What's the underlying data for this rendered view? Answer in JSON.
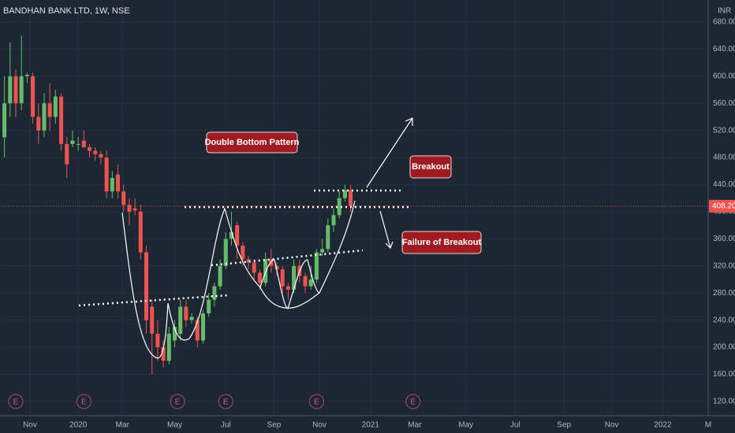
{
  "chart_data": {
    "type": "candlestick",
    "title": "BANDHAN BANK LTD, 1W, NSE",
    "currency": "INR",
    "up_color": "#66bb6a",
    "down_color": "#ef5350",
    "x": [
      0,
      1,
      2,
      3,
      4,
      5,
      6,
      7,
      8,
      9,
      10,
      11,
      12,
      13,
      14,
      15,
      16,
      17,
      18,
      19,
      20,
      21,
      22,
      23,
      24,
      25,
      26,
      27,
      28,
      29,
      30,
      31,
      32,
      33,
      34,
      35,
      36,
      37,
      38,
      39,
      40,
      41,
      42,
      43,
      44,
      45,
      46,
      47,
      48,
      49,
      50,
      51,
      52,
      53,
      54,
      55,
      56,
      57,
      58,
      59,
      60,
      61
    ],
    "open": [
      510,
      560,
      600,
      560,
      600,
      600,
      540,
      520,
      560,
      540,
      570,
      500,
      500,
      500,
      505,
      495,
      490,
      485,
      480,
      430,
      455,
      430,
      410,
      405,
      400,
      340,
      260,
      220,
      200,
      180,
      210,
      220,
      260,
      240,
      240,
      210,
      250,
      270,
      290,
      320,
      360,
      380,
      350,
      330,
      325,
      310,
      295,
      330,
      320,
      315,
      290,
      285,
      320,
      305,
      290,
      300,
      340,
      345,
      380,
      395,
      420,
      432
    ],
    "high": [
      600,
      650,
      610,
      660,
      605,
      605,
      560,
      575,
      590,
      580,
      575,
      510,
      520,
      510,
      520,
      500,
      495,
      490,
      490,
      460,
      470,
      440,
      420,
      420,
      410,
      350,
      270,
      240,
      210,
      230,
      240,
      270,
      270,
      250,
      245,
      255,
      280,
      295,
      330,
      370,
      400,
      385,
      355,
      335,
      330,
      315,
      340,
      345,
      325,
      320,
      295,
      330,
      330,
      310,
      320,
      345,
      360,
      390,
      405,
      430,
      440,
      440
    ],
    "low": [
      480,
      540,
      540,
      550,
      590,
      530,
      500,
      510,
      520,
      530,
      490,
      450,
      495,
      490,
      495,
      480,
      475,
      470,
      420,
      420,
      420,
      400,
      380,
      395,
      330,
      220,
      160,
      180,
      170,
      175,
      200,
      210,
      230,
      235,
      200,
      205,
      245,
      260,
      285,
      315,
      350,
      330,
      320,
      315,
      300,
      285,
      290,
      310,
      305,
      280,
      270,
      280,
      295,
      280,
      285,
      295,
      335,
      340,
      370,
      390,
      415,
      400
    ],
    "close": [
      560,
      600,
      560,
      600,
      602,
      540,
      520,
      560,
      540,
      570,
      500,
      470,
      505,
      500,
      495,
      490,
      485,
      480,
      430,
      450,
      430,
      410,
      400,
      402,
      340,
      240,
      220,
      200,
      180,
      220,
      230,
      260,
      240,
      245,
      210,
      250,
      270,
      290,
      320,
      360,
      370,
      350,
      330,
      325,
      310,
      295,
      330,
      320,
      315,
      290,
      285,
      320,
      305,
      290,
      300,
      340,
      345,
      380,
      395,
      420,
      432,
      408.2
    ],
    "xlim": [
      -0.5,
      124
    ],
    "xticks": [
      {
        "value": 4.5,
        "label": "Nov"
      },
      {
        "value": 13,
        "label": "2020"
      },
      {
        "value": 20.8,
        "label": "Mar"
      },
      {
        "value": 30,
        "label": "May"
      },
      {
        "value": 39,
        "label": "Jul"
      },
      {
        "value": 47.5,
        "label": "Sep"
      },
      {
        "value": 55.5,
        "label": "Nov"
      },
      {
        "value": 64.5,
        "label": "2021"
      },
      {
        "value": 72.3,
        "label": "Mar"
      },
      {
        "value": 81.3,
        "label": "May"
      },
      {
        "value": 90,
        "label": "Jul"
      },
      {
        "value": 98.6,
        "label": "Sep"
      },
      {
        "value": 107,
        "label": "Nov"
      },
      {
        "value": 116,
        "label": "2022"
      },
      {
        "value": 124,
        "label": "M"
      }
    ],
    "ylim": [
      99,
      712.5
    ],
    "yticks": [
      {
        "value": 120,
        "label": "120.00"
      },
      {
        "value": 160,
        "label": "160.00"
      },
      {
        "value": 200,
        "label": "200.00"
      },
      {
        "value": 240,
        "label": "240.00"
      },
      {
        "value": 280,
        "label": "280.00"
      },
      {
        "value": 320,
        "label": "320.00"
      },
      {
        "value": 360,
        "label": "360.00"
      },
      {
        "value": 400,
        "label": "400.00"
      },
      {
        "value": 440,
        "label": "440.00"
      },
      {
        "value": 480,
        "label": "480.00"
      },
      {
        "value": 520,
        "label": "520.00"
      },
      {
        "value": 560,
        "label": "560.00"
      },
      {
        "value": 600,
        "label": "600.00"
      },
      {
        "value": 640,
        "label": "640.00"
      },
      {
        "value": 680,
        "label": "680.00"
      }
    ],
    "grid": true,
    "last_price": {
      "value": 408.2,
      "label": "408.20"
    },
    "earnings": [
      {
        "label": "E",
        "x": 2
      },
      {
        "label": "E",
        "x": 14
      },
      {
        "label": "E",
        "x": 30.5
      },
      {
        "label": "E",
        "x": 39
      },
      {
        "label": "E",
        "x": 55
      },
      {
        "label": "E",
        "x": 72
      }
    ],
    "annotations": [
      "Double Bottom Pattern",
      "Breakout",
      "Failure of Breakout"
    ]
  }
}
